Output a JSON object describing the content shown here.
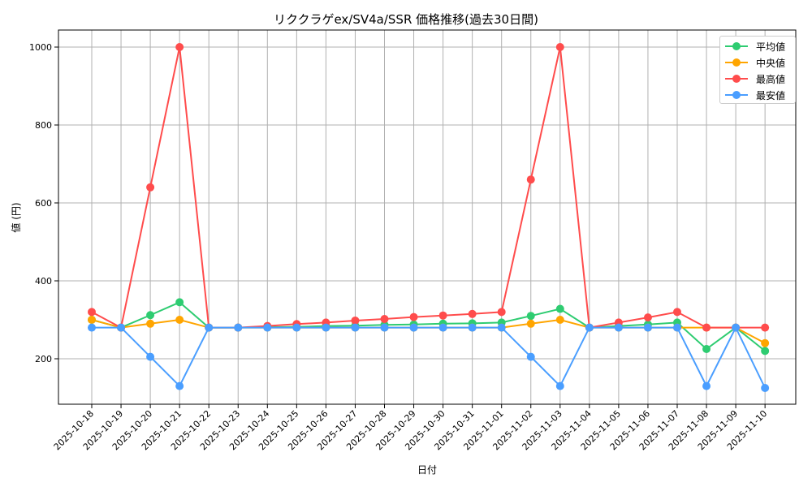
{
  "chart_data": {
    "type": "line",
    "title": "リククラゲex/SV4a/SSR 価格推移(過去30日間)",
    "xlabel": "日付",
    "ylabel": "値 (円)",
    "ylim": [
      85,
      1040
    ],
    "yticks": [
      200,
      400,
      600,
      800,
      1000
    ],
    "grid": true,
    "legend_position": "upper right",
    "categories": [
      "2025-10-18",
      "2025-10-19",
      "2025-10-20",
      "2025-10-21",
      "2025-10-22",
      "2025-10-23",
      "2025-10-24",
      "2025-10-25",
      "2025-10-26",
      "2025-10-27",
      "2025-10-28",
      "2025-10-29",
      "2025-10-30",
      "2025-10-31",
      "2025-11-01",
      "2025-11-02",
      "2025-11-03",
      "2025-11-04",
      "2025-11-05",
      "2025-11-06",
      "2025-11-07",
      "2025-11-08",
      "2025-11-09",
      "2025-11-10"
    ],
    "series": [
      {
        "name": "平均値",
        "color": "#2ecc71",
        "values": [
          300,
          280,
          312,
          345,
          280,
          280,
          281,
          282,
          284,
          285,
          287,
          288,
          290,
          291,
          293,
          310,
          328,
          280,
          284,
          288,
          293,
          225,
          280,
          220
        ]
      },
      {
        "name": "中央値",
        "color": "#ffa500",
        "values": [
          300,
          280,
          290,
          300,
          280,
          280,
          280,
          280,
          280,
          280,
          280,
          280,
          280,
          280,
          280,
          290,
          300,
          280,
          280,
          280,
          280,
          280,
          280,
          240
        ]
      },
      {
        "name": "最高値",
        "color": "#ff4c4c",
        "values": [
          320,
          280,
          640,
          1000,
          280,
          280,
          284,
          289,
          293,
          298,
          302,
          307,
          311,
          315,
          320,
          660,
          1000,
          280,
          293,
          306,
          320,
          280,
          280,
          280
        ]
      },
      {
        "name": "最安値",
        "color": "#4a9eff",
        "values": [
          280,
          280,
          205,
          130,
          280,
          280,
          280,
          280,
          280,
          280,
          280,
          280,
          280,
          280,
          280,
          205,
          130,
          280,
          280,
          280,
          280,
          130,
          280,
          125
        ]
      }
    ]
  }
}
